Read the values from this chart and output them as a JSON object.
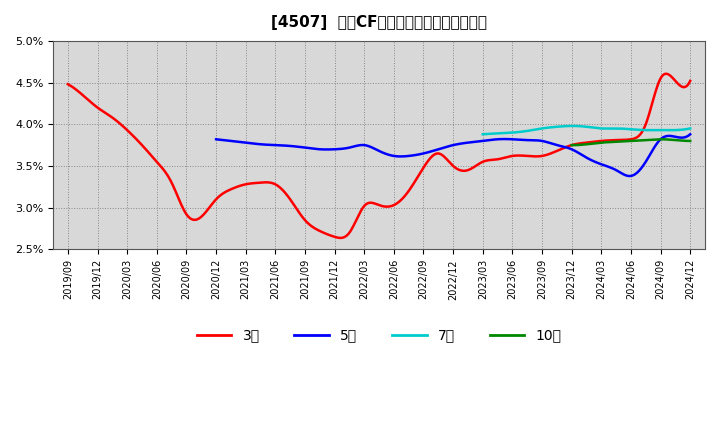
{
  "title": "[4507]  営業CFマージンの標準偏差の推移",
  "ylim": [
    0.025,
    0.05
  ],
  "yticks": [
    0.025,
    0.03,
    0.035,
    0.04,
    0.045,
    0.05
  ],
  "background_color": "#ffffff",
  "plot_bg_color": "#d8d8d8",
  "grid_color": "#888888",
  "x_labels": [
    "2019/09",
    "2019/12",
    "2020/03",
    "2020/06",
    "2020/09",
    "2020/12",
    "2021/03",
    "2021/06",
    "2021/09",
    "2021/12",
    "2022/03",
    "2022/06",
    "2022/09",
    "2022/12",
    "2023/03",
    "2023/06",
    "2023/09",
    "2023/12",
    "2024/03",
    "2024/06",
    "2024/09",
    "2024/12"
  ],
  "series": {
    "3year": {
      "color": "#ff0000",
      "label": "3年",
      "data_x": [
        0,
        0.5,
        1,
        1.5,
        2,
        2.5,
        3,
        3.5,
        4,
        4.5,
        5,
        5.5,
        6,
        6.5,
        7,
        7.5,
        8,
        8.5,
        9,
        9.5,
        10,
        10.5,
        11,
        11.5,
        12,
        12.5,
        13,
        13.5,
        14,
        14.5,
        15,
        15.5,
        16,
        16.5,
        17,
        17.5,
        18,
        18.5,
        19,
        19.5,
        20,
        20.5,
        21
      ],
      "data_y": [
        0.0448,
        0.0435,
        0.042,
        0.0408,
        0.0393,
        0.0375,
        0.0355,
        0.033,
        0.0292,
        0.0289,
        0.031,
        0.0322,
        0.0328,
        0.033,
        0.0328,
        0.031,
        0.0285,
        0.0272,
        0.0265,
        0.027,
        0.0302,
        0.0303,
        0.0303,
        0.032,
        0.0348,
        0.0365,
        0.035,
        0.0345,
        0.0355,
        0.0358,
        0.0362,
        0.0362,
        0.0362,
        0.0368,
        0.0375,
        0.0378,
        0.038,
        0.0381,
        0.0382,
        0.04,
        0.0455,
        0.0452,
        0.0452
      ]
    },
    "5year": {
      "color": "#0000ff",
      "label": "5年",
      "data_x": [
        5,
        5.5,
        6,
        6.5,
        7,
        7.5,
        8,
        8.5,
        9,
        9.5,
        10,
        10.5,
        11,
        11.5,
        12,
        12.5,
        13,
        13.5,
        14,
        14.5,
        15,
        15.5,
        16,
        16.5,
        17,
        17.5,
        18,
        18.5,
        19,
        19.5,
        20,
        20.5,
        21
      ],
      "data_y": [
        0.0382,
        0.038,
        0.0378,
        0.0376,
        0.0375,
        0.0374,
        0.0372,
        0.037,
        0.037,
        0.0372,
        0.0375,
        0.0368,
        0.0362,
        0.0362,
        0.0365,
        0.037,
        0.0375,
        0.0378,
        0.038,
        0.0382,
        0.0382,
        0.0381,
        0.038,
        0.0375,
        0.037,
        0.036,
        0.0352,
        0.0345,
        0.0338,
        0.0355,
        0.0382,
        0.0385,
        0.0388
      ]
    },
    "7year": {
      "color": "#00cccc",
      "label": "7年",
      "data_x": [
        14,
        14.5,
        15,
        15.5,
        16,
        16.5,
        17,
        17.5,
        18,
        18.5,
        19,
        19.5,
        20,
        20.5,
        21
      ],
      "data_y": [
        0.0388,
        0.0389,
        0.039,
        0.0392,
        0.0395,
        0.0397,
        0.0398,
        0.0397,
        0.0395,
        0.0395,
        0.0394,
        0.0393,
        0.0393,
        0.0393,
        0.0395
      ]
    },
    "10year": {
      "color": "#008800",
      "label": "10年",
      "data_x": [
        17,
        17.5,
        18,
        18.5,
        19,
        19.5,
        20,
        20.5,
        21
      ],
      "data_y": [
        0.0375,
        0.0376,
        0.0378,
        0.0379,
        0.038,
        0.0381,
        0.0382,
        0.0381,
        0.038
      ]
    }
  },
  "legend_labels": [
    "3年",
    "5年",
    "7年",
    "10年"
  ],
  "legend_colors": [
    "#ff0000",
    "#0000ff",
    "#00cccc",
    "#008800"
  ],
  "linewidth": 1.8
}
